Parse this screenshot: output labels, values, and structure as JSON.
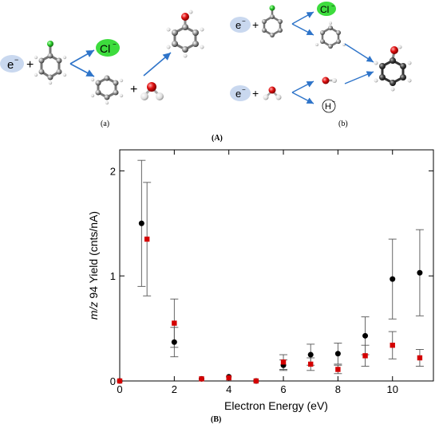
{
  "scheme": {
    "panel_a": {
      "electron": "e",
      "electron_sup": "−",
      "plus": "+",
      "chloride": "Cl",
      "chloride_sup": "−",
      "caption": "(a)"
    },
    "panel_b": {
      "electron_top": "e",
      "electron_bottom": "e",
      "electron_sup": "−",
      "plus": "+",
      "chloride": "Cl",
      "chloride_sup": "−",
      "hydrogen": "H",
      "hydrogen_sup": "−",
      "caption": "(b)"
    },
    "caption": "(A)"
  },
  "colors": {
    "electron_bubble": "#c9d8ef",
    "chloride_bubble": "#3ddc3d",
    "arrow": "#2e74c9",
    "series_black": "#000000",
    "series_red": "#d40000",
    "error_bar": "#555555"
  },
  "chart_data": {
    "type": "scatter",
    "xlabel": "Electron Energy (eV)",
    "ylabel_italic": "m/z",
    "ylabel_rest": " 94 Yield (cnts/nA)",
    "xlim": [
      0,
      11.5
    ],
    "ylim": [
      0,
      2.2
    ],
    "xticks": [
      0,
      2,
      4,
      6,
      8,
      10
    ],
    "yticks": [
      0,
      1,
      2
    ],
    "grid": false,
    "caption": "(B)",
    "series": [
      {
        "color": "#000000",
        "marker": "circle",
        "points": [
          {
            "x": 0.0,
            "y": 0.0,
            "err": 0
          },
          {
            "x": 0.8,
            "y": 1.5,
            "err": 0.6
          },
          {
            "x": 2.0,
            "y": 0.37,
            "err": 0.14
          },
          {
            "x": 3.0,
            "y": 0.02,
            "err": 0
          },
          {
            "x": 4.0,
            "y": 0.04,
            "err": 0
          },
          {
            "x": 5.0,
            "y": 0.0,
            "err": 0
          },
          {
            "x": 6.0,
            "y": 0.15,
            "err": 0.05
          },
          {
            "x": 7.0,
            "y": 0.25,
            "err": 0.1
          },
          {
            "x": 8.0,
            "y": 0.26,
            "err": 0.1
          },
          {
            "x": 9.0,
            "y": 0.43,
            "err": 0.18
          },
          {
            "x": 10.0,
            "y": 0.97,
            "err": 0.38
          },
          {
            "x": 11.0,
            "y": 1.03,
            "err": 0.41
          }
        ]
      },
      {
        "color": "#d40000",
        "marker": "square",
        "points": [
          {
            "x": 0.0,
            "y": 0.0,
            "err": 0
          },
          {
            "x": 1.0,
            "y": 1.35,
            "err": 0.54
          },
          {
            "x": 2.0,
            "y": 0.55,
            "err": 0.23
          },
          {
            "x": 3.0,
            "y": 0.02,
            "err": 0
          },
          {
            "x": 4.0,
            "y": 0.03,
            "err": 0
          },
          {
            "x": 5.0,
            "y": 0.0,
            "err": 0
          },
          {
            "x": 6.0,
            "y": 0.18,
            "err": 0.07
          },
          {
            "x": 7.0,
            "y": 0.16,
            "err": 0.06
          },
          {
            "x": 8.0,
            "y": 0.11,
            "err": 0.04
          },
          {
            "x": 9.0,
            "y": 0.24,
            "err": 0.1
          },
          {
            "x": 10.0,
            "y": 0.34,
            "err": 0.13
          },
          {
            "x": 11.0,
            "y": 0.22,
            "err": 0.08
          }
        ]
      }
    ]
  }
}
